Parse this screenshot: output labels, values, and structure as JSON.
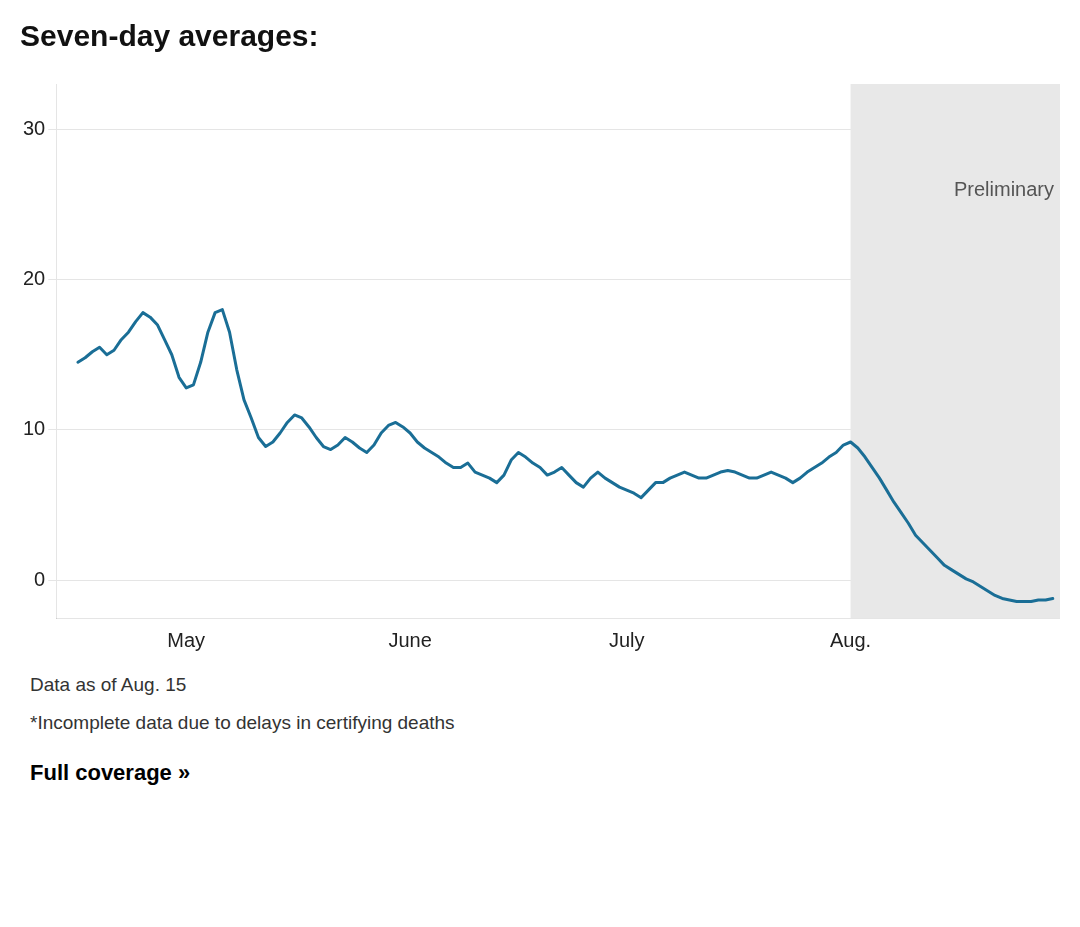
{
  "chart_data": {
    "type": "line",
    "title": "Seven-day averages:",
    "color": "#1a6e96",
    "x": [
      0,
      1,
      2,
      3,
      4,
      5,
      6,
      7,
      8,
      9,
      10,
      11,
      12,
      13,
      14,
      15,
      16,
      17,
      18,
      19,
      20,
      21,
      22,
      23,
      24,
      25,
      26,
      27,
      28,
      29,
      30,
      31,
      32,
      33,
      34,
      35,
      36,
      37,
      38,
      39,
      40,
      41,
      42,
      43,
      44,
      45,
      46,
      47,
      48,
      49,
      50,
      51,
      52,
      53,
      54,
      55,
      56,
      57,
      58,
      59,
      60,
      61,
      62,
      63,
      64,
      65,
      66,
      67,
      68,
      69,
      70,
      71,
      72,
      73,
      74,
      75,
      76,
      77,
      78,
      79,
      80,
      81,
      82,
      83,
      84,
      85,
      86,
      87,
      88,
      89,
      90,
      91,
      92,
      93,
      94,
      95,
      96,
      97,
      98,
      99,
      100,
      101,
      102,
      103,
      104,
      105,
      106,
      107,
      108,
      109,
      110,
      111,
      112,
      113,
      114,
      115,
      116,
      117,
      118,
      119,
      120,
      121,
      122,
      123,
      124,
      125,
      126,
      127,
      128,
      129,
      130,
      131,
      132,
      133,
      134,
      135
    ],
    "values": [
      14.5,
      14.8,
      15.2,
      15.5,
      15.0,
      15.3,
      16.0,
      16.5,
      17.2,
      17.8,
      17.5,
      17.0,
      16.0,
      15.0,
      13.5,
      12.8,
      13.0,
      14.5,
      16.5,
      17.8,
      18.0,
      16.5,
      14.0,
      12.0,
      10.8,
      9.5,
      8.9,
      9.2,
      9.8,
      10.5,
      11.0,
      10.8,
      10.2,
      9.5,
      8.9,
      8.7,
      9.0,
      9.5,
      9.2,
      8.8,
      8.5,
      9.0,
      9.8,
      10.3,
      10.5,
      10.2,
      9.8,
      9.2,
      8.8,
      8.5,
      8.2,
      7.8,
      7.5,
      7.5,
      7.8,
      7.2,
      7.0,
      6.8,
      6.5,
      7.0,
      8.0,
      8.5,
      8.2,
      7.8,
      7.5,
      7.0,
      7.2,
      7.5,
      7.0,
      6.5,
      6.2,
      6.8,
      7.2,
      6.8,
      6.5,
      6.2,
      6.0,
      5.8,
      5.5,
      6.0,
      6.5,
      6.5,
      6.8,
      7.0,
      7.2,
      7.0,
      6.8,
      6.8,
      7.0,
      7.2,
      7.3,
      7.2,
      7.0,
      6.8,
      6.8,
      7.0,
      7.2,
      7.0,
      6.8,
      6.5,
      6.8,
      7.2,
      7.5,
      7.8,
      8.2,
      8.5,
      9.0,
      9.2,
      8.8,
      8.2,
      7.5,
      6.8,
      6.0,
      5.2,
      4.5,
      3.8,
      3.0,
      2.5,
      2.0,
      1.5,
      1.0,
      0.7,
      0.4,
      0.1,
      -0.1,
      -0.4,
      -0.7,
      -1.0,
      -1.2,
      -1.3,
      -1.4,
      -1.4,
      -1.4,
      -1.3,
      -1.3,
      -1.2
    ],
    "xlim": [
      -3,
      136
    ],
    "xticks": [
      {
        "value": 15,
        "label": "May"
      },
      {
        "value": 46,
        "label": "June"
      },
      {
        "value": 76,
        "label": "July"
      },
      {
        "value": 107,
        "label": "Aug."
      }
    ],
    "ylim": [
      -2.5,
      33
    ],
    "yticks": [
      0,
      10,
      20,
      30
    ],
    "grid": true,
    "shaded_region": {
      "start": 107,
      "label": "Preliminary",
      "color": "#e8e8e8"
    },
    "footnotes": [
      "Data as of Aug. 15",
      "*Incomplete data due to delays in certifying deaths",
      "Full coverage »"
    ]
  }
}
